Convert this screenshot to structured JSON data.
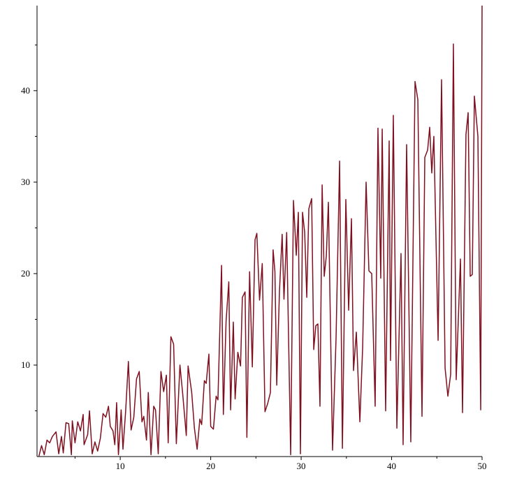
{
  "chart_data": {
    "type": "line",
    "color": "#7f1020",
    "xlim": [
      0.8,
      50
    ],
    "ylim": [
      0,
      49.3
    ],
    "xticks": [
      10,
      20,
      30,
      40,
      50
    ],
    "yticks": [
      10,
      20,
      30,
      40
    ],
    "xminorticks": [
      5,
      15,
      25,
      35,
      45
    ],
    "yminorticks": [
      5,
      15,
      25,
      35,
      45
    ],
    "x": [
      1,
      1.3,
      1.6,
      1.9,
      2.2,
      2.5,
      2.9,
      3.2,
      3.5,
      3.7,
      4,
      4.3,
      4.6,
      4.7,
      5,
      5.3,
      5.6,
      5.9,
      6,
      6.4,
      6.6,
      6.9,
      7.2,
      7.5,
      7.8,
      8.1,
      8.4,
      8.7,
      8.9,
      9.2,
      9.4,
      9.6,
      9.8,
      10.1,
      10.3,
      10.6,
      10.9,
      11.2,
      11.5,
      11.8,
      12.1,
      12.4,
      12.6,
      12.9,
      13.1,
      13.4,
      13.7,
      13.9,
      14.2,
      14.5,
      14.8,
      15.1,
      15.3,
      15.6,
      15.9,
      16.2,
      16.6,
      16.9,
      17.3,
      17.5,
      17.9,
      18.2,
      18.5,
      18.8,
      19,
      19.3,
      19.5,
      19.8,
      20,
      20.3,
      20.6,
      20.8,
      21.2,
      21.4,
      21.7,
      22,
      22.2,
      22.5,
      22.7,
      23,
      23.3,
      23.5,
      23.8,
      24,
      24.3,
      24.6,
      24.9,
      25.1,
      25.4,
      25.7,
      26,
      26.3,
      26.6,
      26.9,
      27.1,
      27.3,
      27.6,
      27.9,
      28.1,
      28.4,
      28.84,
      29.15,
      29.46,
      29.69,
      29.92,
      30.15,
      30.39,
      30.62,
      30.85,
      31.16,
      31.39,
      31.62,
      31.85,
      32.08,
      32.32,
      32.55,
      32.78,
      33.01,
      33.47,
      33.86,
      34.25,
      34.56,
      34.94,
      35.25,
      35.56,
      35.79,
      36.1,
      36.49,
      36.8,
      37.18,
      37.49,
      37.8,
      38.18,
      38.49,
      38.8,
      38.96,
      39.34,
      39.73,
      39.88,
      40.19,
      40.58,
      41.04,
      41.27,
      41.66,
      42.12,
      42.59,
      42.9,
      43.36,
      43.67,
      43.98,
      44.21,
      44.44,
      44.67,
      45.14,
      45.52,
      45.91,
      46.22,
      46.53,
      46.83,
      47.14,
      47.61,
      47.84,
      48.22,
      48.46,
      48.69,
      48.92,
      49.15,
      49.54,
      49.85,
      50
    ],
    "values": [
      0,
      1.2,
      0.2,
      1.8,
      1.5,
      2.2,
      2.7,
      0.3,
      2.2,
      0.4,
      3.7,
      3.6,
      0.2,
      3.9,
      1.5,
      3.8,
      2.8,
      4.6,
      1.3,
      2.4,
      5,
      0.3,
      1.6,
      0.6,
      2,
      4.7,
      4.3,
      5.5,
      3.3,
      2.8,
      1.3,
      5.9,
      0.2,
      5.1,
      0.8,
      5,
      10.4,
      2.9,
      4.3,
      8.5,
      9.3,
      3.8,
      4.4,
      1.8,
      7,
      0.2,
      5.5,
      5.1,
      0.3,
      9.3,
      7.1,
      8.9,
      1.5,
      13.1,
      12.3,
      1.4,
      10,
      6.9,
      2.3,
      9.9,
      7,
      3.1,
      0.8,
      4.1,
      3.5,
      8.3,
      8,
      11.2,
      3.3,
      3,
      6.6,
      6.2,
      20.9,
      4.6,
      14.8,
      19.1,
      5.1,
      14.7,
      6.3,
      11.4,
      9.9,
      17.4,
      18,
      2.1,
      20.2,
      9.8,
      23.7,
      24.4,
      17.1,
      21.1,
      4.9,
      5.8,
      7,
      22.6,
      20.2,
      7.8,
      18,
      24.3,
      17.2,
      24.5,
      0.2,
      28,
      22,
      26.7,
      0.3,
      26.7,
      24.5,
      17.4,
      27.1,
      28.2,
      11.7,
      14.3,
      14.5,
      5.5,
      29.7,
      19.7,
      21.9,
      27.8,
      0.7,
      13,
      32.3,
      0.9,
      28.1,
      16,
      26,
      9.4,
      13.6,
      3.8,
      12,
      30,
      20.3,
      20,
      5.5,
      35.9,
      19.5,
      35.8,
      5,
      34.5,
      10.5,
      37.3,
      3.1,
      22.2,
      1.3,
      34.1,
      1.6,
      41,
      39,
      4.4,
      32.7,
      33.5,
      36,
      31,
      35,
      12.7,
      41.2,
      9.7,
      6.6,
      9,
      45.1,
      8.4,
      21.6,
      4.8,
      35.2,
      37.6,
      19.7,
      19.9,
      39.4,
      35,
      5.1,
      49.3
    ]
  }
}
